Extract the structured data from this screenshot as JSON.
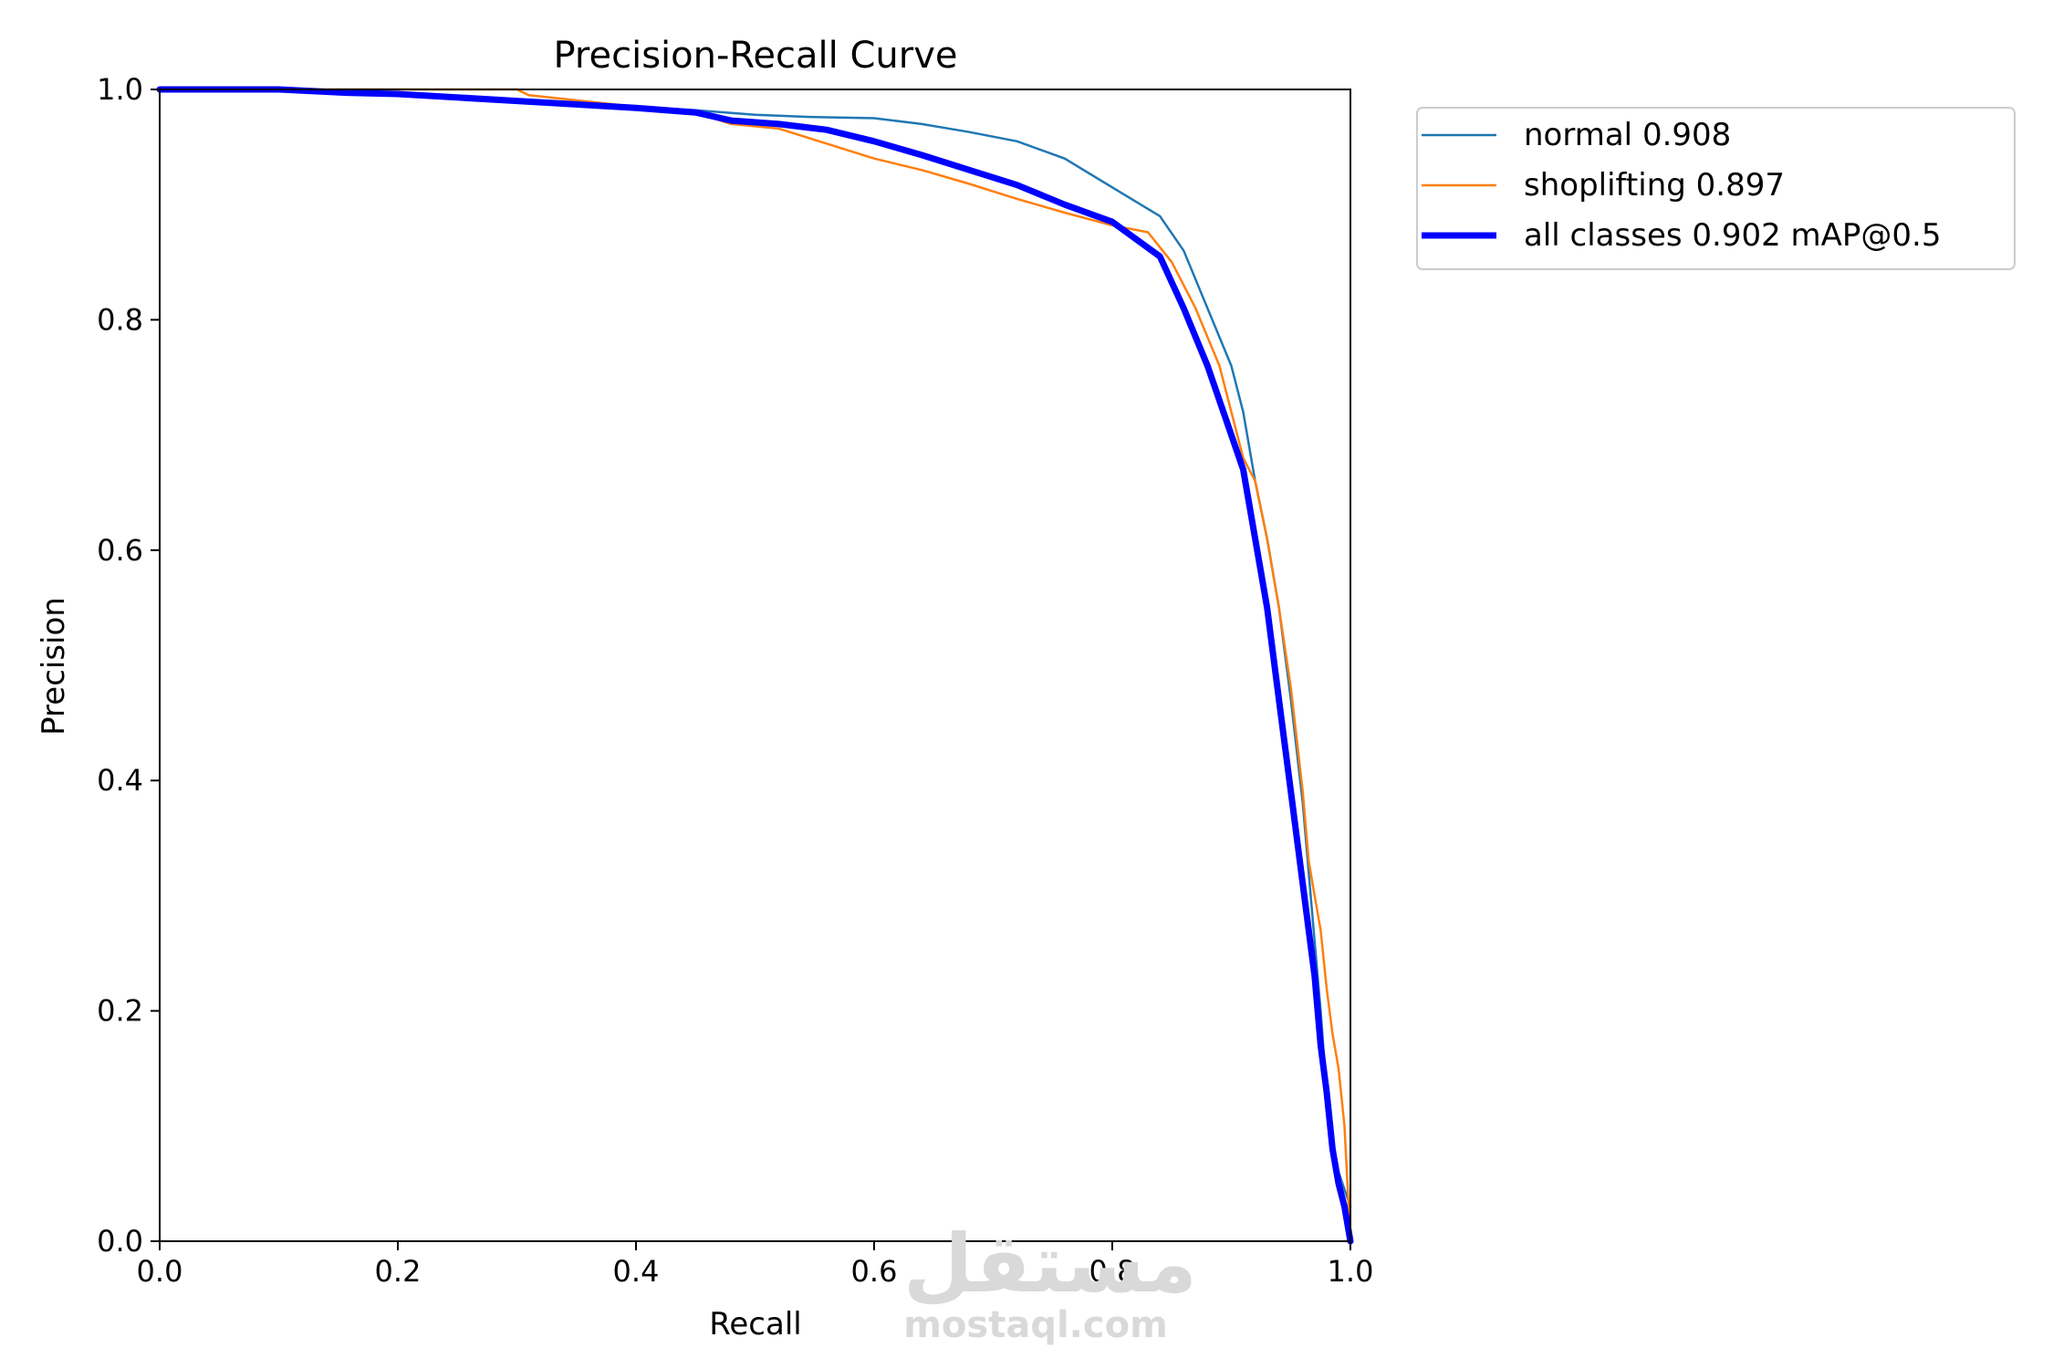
{
  "chart_data": {
    "type": "line",
    "title": "Precision-Recall Curve",
    "xlabel": "Recall",
    "ylabel": "Precision",
    "xlim": [
      0,
      1
    ],
    "ylim": [
      0,
      1
    ],
    "xticks": [
      "0.0",
      "0.2",
      "0.4",
      "0.6",
      "0.8",
      "1.0"
    ],
    "yticks": [
      "0.0",
      "0.2",
      "0.4",
      "0.6",
      "0.8",
      "1.0"
    ],
    "grid": false,
    "legend_position": "outside-top-right",
    "series": [
      {
        "name": "normal 0.908",
        "color": "#1f77b4",
        "x": [
          0.0,
          0.1,
          0.2,
          0.24,
          0.3,
          0.4,
          0.45,
          0.5,
          0.55,
          0.6,
          0.64,
          0.68,
          0.72,
          0.76,
          0.8,
          0.84,
          0.86,
          0.88,
          0.9,
          0.91,
          0.92,
          0.93,
          0.94,
          0.95,
          0.96,
          0.965,
          0.97,
          0.975,
          0.98,
          0.985,
          0.99,
          1.0
        ],
        "y": [
          1.0,
          1.0,
          0.997,
          0.993,
          0.99,
          0.985,
          0.982,
          0.978,
          0.976,
          0.975,
          0.97,
          0.963,
          0.955,
          0.94,
          0.915,
          0.89,
          0.86,
          0.81,
          0.76,
          0.72,
          0.66,
          0.61,
          0.55,
          0.47,
          0.38,
          0.32,
          0.26,
          0.2,
          0.13,
          0.08,
          0.06,
          0.03
        ]
      },
      {
        "name": "shoplifting 0.897",
        "color": "#ff7f0e",
        "x": [
          0.0,
          0.1,
          0.2,
          0.3,
          0.31,
          0.4,
          0.45,
          0.48,
          0.52,
          0.56,
          0.6,
          0.64,
          0.68,
          0.72,
          0.76,
          0.8,
          0.83,
          0.85,
          0.87,
          0.89,
          0.9,
          0.91,
          0.92,
          0.93,
          0.94,
          0.95,
          0.96,
          0.965,
          0.97,
          0.975,
          0.98,
          0.985,
          0.99,
          0.995,
          1.0
        ],
        "y": [
          1.0,
          1.0,
          1.0,
          1.0,
          0.995,
          0.985,
          0.98,
          0.97,
          0.966,
          0.953,
          0.94,
          0.93,
          0.918,
          0.905,
          0.893,
          0.882,
          0.876,
          0.85,
          0.81,
          0.76,
          0.72,
          0.68,
          0.66,
          0.61,
          0.55,
          0.48,
          0.39,
          0.33,
          0.3,
          0.27,
          0.22,
          0.18,
          0.15,
          0.1,
          0.0
        ]
      },
      {
        "name": "all classes 0.902 mAP@0.5",
        "color": "#0000ff",
        "x": [
          0.0,
          0.1,
          0.16,
          0.2,
          0.3,
          0.4,
          0.45,
          0.48,
          0.52,
          0.56,
          0.6,
          0.64,
          0.68,
          0.72,
          0.76,
          0.8,
          0.84,
          0.86,
          0.88,
          0.9,
          0.91,
          0.92,
          0.93,
          0.94,
          0.95,
          0.96,
          0.965,
          0.97,
          0.975,
          0.98,
          0.985,
          0.99,
          0.995,
          1.0
        ],
        "y": [
          1.0,
          1.0,
          0.997,
          0.996,
          0.99,
          0.984,
          0.98,
          0.973,
          0.97,
          0.965,
          0.955,
          0.943,
          0.93,
          0.917,
          0.9,
          0.885,
          0.855,
          0.81,
          0.76,
          0.7,
          0.67,
          0.61,
          0.55,
          0.47,
          0.39,
          0.31,
          0.27,
          0.23,
          0.17,
          0.13,
          0.08,
          0.05,
          0.03,
          0.0
        ]
      }
    ]
  },
  "watermark": {
    "arabic": "مستقل",
    "latin": "mostaql.com"
  }
}
